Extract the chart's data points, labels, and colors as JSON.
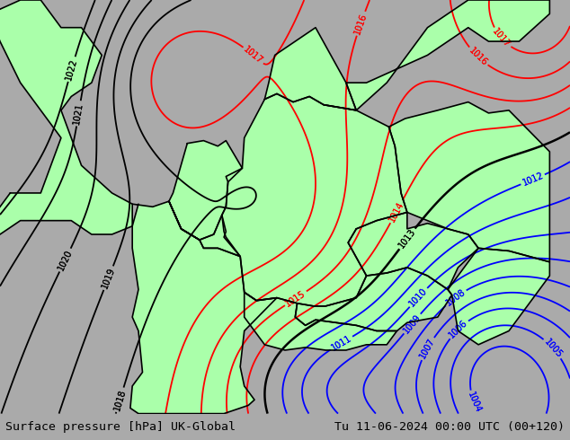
{
  "title_left": "Surface pressure [hPa] UK-Global",
  "title_right": "Tu 11-06-2024 00:00 UTC (00+120)",
  "bg_outer": "#aaaaaa",
  "land_color": "#aaffaa",
  "sea_color": "#dddddd",
  "border_color": "#000000",
  "isobar_black": "#000000",
  "isobar_red": "#ff0000",
  "isobar_blue": "#0000ff",
  "footer_bg": "#cccccc",
  "footer_text_color": "#000000",
  "font_family": "monospace",
  "xlim": [
    -5,
    23
  ],
  "ylim": [
    43.5,
    58.5
  ],
  "figsize": [
    6.34,
    4.9
  ],
  "dpi": 100
}
